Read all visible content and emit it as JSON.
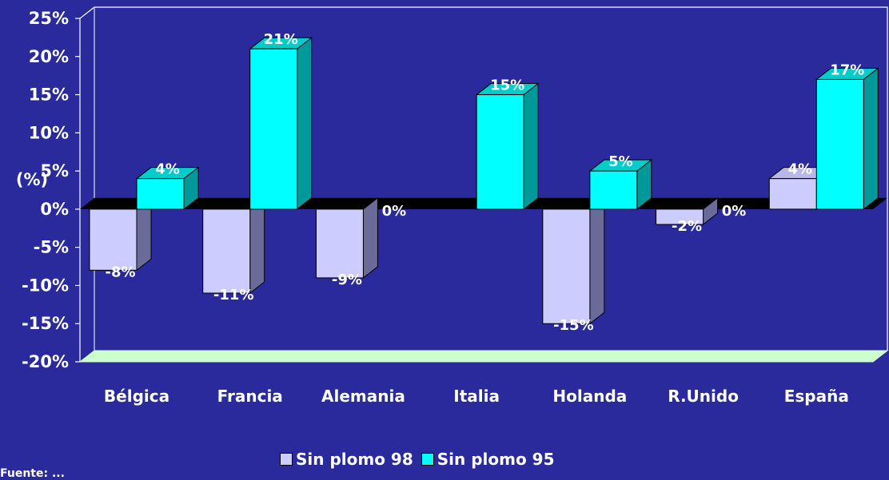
{
  "chart_data": {
    "type": "bar",
    "ylabel": "(%)",
    "ylim": [
      -20,
      25
    ],
    "yticks": [
      "25%",
      "20%",
      "15%",
      "10%",
      "5%",
      "0%",
      "-5%",
      "-10%",
      "-15%",
      "-20%"
    ],
    "categories": [
      "Bélgica",
      "Francia",
      "Alemania",
      "Italia",
      "Holanda",
      "R.Unido",
      "España"
    ],
    "series": [
      {
        "name": "Sin plomo 98",
        "values": [
          -8,
          -11,
          -9,
          null,
          -15,
          -2,
          4
        ],
        "labels": [
          "-8%",
          "-11%",
          "-9%",
          "",
          "-15%",
          "-2%",
          "4%"
        ]
      },
      {
        "name": "Sin plomo 95",
        "values": [
          4,
          21,
          0,
          15,
          5,
          0,
          17
        ],
        "labels": [
          "4%",
          "21%",
          "0%",
          "15%",
          "5%",
          "0%",
          "17%"
        ]
      }
    ],
    "legend_position": "bottom",
    "colors": {
      "background": "#2a2a9c",
      "series98_front": "#ccccff",
      "series98_side": "#6b6b99",
      "series98_top": "#b8b8e8",
      "series95_front": "#00ffff",
      "series95_side": "#009999",
      "series95_top": "#00cccc",
      "floor": "#ccffcc",
      "wall_line": "#ffffff",
      "zero_plane": "#000000"
    }
  },
  "legend": {
    "item98": "Sin plomo 98",
    "item95": "Sin plomo 95"
  },
  "footer": "Fuente: ..."
}
